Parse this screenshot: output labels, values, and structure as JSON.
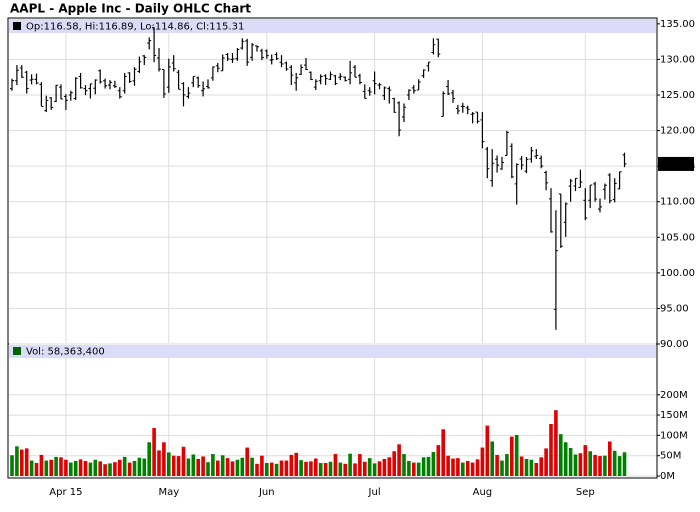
{
  "chart_data": {
    "type": "ohlc",
    "title": "AAPL - Apple Inc - Daily OHLC Chart",
    "ohlc_legend": "Op:116.58, Hi:116.89, Lo:114.86, Cl:115.31",
    "volume_legend": "Vol: 58,363,400",
    "categories": [
      null,
      null,
      null,
      null,
      null,
      null,
      null,
      null,
      null,
      null,
      null,
      "Apr 15",
      null,
      null,
      null,
      null,
      null,
      null,
      null,
      null,
      null,
      null,
      null,
      null,
      null,
      null,
      null,
      null,
      null,
      null,
      null,
      null,
      "May",
      null,
      null,
      null,
      null,
      null,
      null,
      null,
      null,
      null,
      null,
      null,
      null,
      null,
      null,
      null,
      null,
      null,
      null,
      null,
      "Jun",
      null,
      null,
      null,
      null,
      null,
      null,
      null,
      null,
      null,
      null,
      null,
      null,
      null,
      null,
      null,
      null,
      null,
      null,
      null,
      null,
      null,
      "Jul",
      null,
      null,
      null,
      null,
      null,
      null,
      null,
      null,
      null,
      null,
      null,
      null,
      null,
      null,
      null,
      null,
      null,
      null,
      null,
      null,
      null,
      "Aug",
      null,
      null,
      null,
      null,
      null,
      null,
      null,
      null,
      null,
      null,
      null,
      null,
      null,
      null,
      null,
      null,
      null,
      null,
      null,
      null,
      "Sep",
      null,
      null,
      null,
      null,
      null,
      null,
      null,
      null
    ],
    "open": [
      125.9,
      127.0,
      128.8,
      128.2,
      127.1,
      127.2,
      126.5,
      122.8,
      124.6,
      124.1,
      126.1,
      124.8,
      125.0,
      124.5,
      127.6,
      125.9,
      125.9,
      125.95,
      128.4,
      127.0,
      126.4,
      126.3,
      125.6,
      125.6,
      128.1,
      126.99,
      128.3,
      130.5,
      132.3,
      134.5,
      130.2,
      128.6,
      126.1,
      129.5,
      128.2,
      126.6,
      124.8,
      126.7,
      127.4,
      125.6,
      126.2,
      127.4,
      129.1,
      128.4,
      130.7,
      130.0,
      130.1,
      131.6,
      132.6,
      130.3,
      131.9,
      131.2,
      131.2,
      129.9,
      130.7,
      129.6,
      129.5,
      128.9,
      126.7,
      127.9,
      129.2,
      128.2,
      126.1,
      127.0,
      127.7,
      127.2,
      127.7,
      127.5,
      127.5,
      127.2,
      128.9,
      127.7,
      125.5,
      125.6,
      127.0,
      126.4,
      124.9,
      125.9,
      124.5,
      123.9,
      121.9,
      125.0,
      126.0,
      125.7,
      127.7,
      129.1,
      130.97,
      132.85,
      121.99,
      126.2,
      125.3,
      123.1,
      123.4,
      123.2,
      122.3,
      122.6,
      121.5,
      117.4,
      112.95,
      115.97,
      114.6,
      116.5,
      117.8,
      112.5,
      116.0,
      114.3,
      116.0,
      116.4,
      116.1,
      114.1,
      110.4,
      94.87,
      111.1,
      107.1,
      112.2,
      112.2,
      112.0,
      110.2,
      110.2,
      112.5,
      108.97,
      111.75,
      113.76,
      110.3,
      111.8,
      116.58
    ],
    "high": [
      127.3,
      129.2,
      129.2,
      128.4,
      127.9,
      128.0,
      126.8,
      124.9,
      124.7,
      126.4,
      126.5,
      125.1,
      125.6,
      127.5,
      128.1,
      126.4,
      126.6,
      127.2,
      128.6,
      127.3,
      127.1,
      127.0,
      126.1,
      128.1,
      128.2,
      128.9,
      130.4,
      130.6,
      133.1,
      134.5,
      131.6,
      128.6,
      130.1,
      130.6,
      128.5,
      126.8,
      126.1,
      127.6,
      127.6,
      126.9,
      127.2,
      129.0,
      129.5,
      130.7,
      130.9,
      130.9,
      131.6,
      132.97,
      132.9,
      132.3,
      131.95,
      131.5,
      131.4,
      130.7,
      131.0,
      130.6,
      129.7,
      129.2,
      128.1,
      129.3,
      130.2,
      128.3,
      127.2,
      127.9,
      127.9,
      128.3,
      127.8,
      128.06,
      127.6,
      129.8,
      129.2,
      127.99,
      126.5,
      126.1,
      128.3,
      126.7,
      126.2,
      126.2,
      124.6,
      124.1,
      123.8,
      125.8,
      126.4,
      127.2,
      128.6,
      129.6,
      132.97,
      132.92,
      125.5,
      127.1,
      125.7,
      123.6,
      123.9,
      123.5,
      122.6,
      122.6,
      122.6,
      117.7,
      117.4,
      116.5,
      116.3,
      119.99,
      118.2,
      115.4,
      116.4,
      116.3,
      117.7,
      117.4,
      116.5,
      114.35,
      111.9,
      108.8,
      111.1,
      109.9,
      113.2,
      113.3,
      114.5,
      111.9,
      112.3,
      112.8,
      110.45,
      112.56,
      114.0,
      113.3,
      114.21,
      116.89
    ],
    "low": [
      125.6,
      126.4,
      127.4,
      125.2,
      126.5,
      126.5,
      123.4,
      122.6,
      122.9,
      124.0,
      124.4,
      122.9,
      124.2,
      124.3,
      125.9,
      124.97,
      124.5,
      125.1,
      126.6,
      125.9,
      125.8,
      126.0,
      124.5,
      125.2,
      126.7,
      126.3,
      128.1,
      129.2,
      131.4,
      129.6,
      128.3,
      124.6,
      125.3,
      128.3,
      125.8,
      123.4,
      124.5,
      126.1,
      126.0,
      124.8,
      125.9,
      127.0,
      128.2,
      128.4,
      129.8,
      129.5,
      129.8,
      131.4,
      129.1,
      129.8,
      131.1,
      129.9,
      130.1,
      129.3,
      129.9,
      128.9,
      128.4,
      126.4,
      125.6,
      127.8,
      128.5,
      127.1,
      125.7,
      126.5,
      126.4,
      127.1,
      126.4,
      127.08,
      126.9,
      126.5,
      127.5,
      126.5,
      124.5,
      124.9,
      125.1,
      125.8,
      124.3,
      123.8,
      122.5,
      119.2,
      121.2,
      124.3,
      125.2,
      125.7,
      127.4,
      128.3,
      130.7,
      130.3,
      121.99,
      125.0,
      123.9,
      122.3,
      122.5,
      122.3,
      121.0,
      121.0,
      117.5,
      113.3,
      112.1,
      114.1,
      114.5,
      116.5,
      113.3,
      109.6,
      114.5,
      114.0,
      115.5,
      116.0,
      114.7,
      111.6,
      105.65,
      92.0,
      103.5,
      105.05,
      110.0,
      111.5,
      112.0,
      107.4,
      109.1,
      110.0,
      108.5,
      110.3,
      109.77,
      109.9,
      111.76,
      114.86
    ],
    "close": [
      127.04,
      128.47,
      127.5,
      125.9,
      127.21,
      126.69,
      123.38,
      124.24,
      123.25,
      126.37,
      124.43,
      124.25,
      125.32,
      127.35,
      126.01,
      125.6,
      126.56,
      127.1,
      126.85,
      126.3,
      126.78,
      126.17,
      124.75,
      127.6,
      126.91,
      128.62,
      129.67,
      130.28,
      132.65,
      130.56,
      128.64,
      125.15,
      128.95,
      128.7,
      125.8,
      125.01,
      125.26,
      127.62,
      126.32,
      125.87,
      126.01,
      128.95,
      128.77,
      130.19,
      130.07,
      130.06,
      131.39,
      132.54,
      129.62,
      132.045,
      131.78,
      130.28,
      130.535,
      129.96,
      130.12,
      129.36,
      128.65,
      127.8,
      127.42,
      128.88,
      128.59,
      127.17,
      126.92,
      127.6,
      127.3,
      127.88,
      126.6,
      127.61,
      127.03,
      128.11,
      127.5,
      126.75,
      124.53,
      125.425,
      126.6,
      126.44,
      126.0,
      125.69,
      122.57,
      120.07,
      123.28,
      125.66,
      125.61,
      126.82,
      128.51,
      129.62,
      132.07,
      130.75,
      125.22,
      125.16,
      124.5,
      122.77,
      123.38,
      122.99,
      122.37,
      121.3,
      118.44,
      114.64,
      115.4,
      115.13,
      115.52,
      119.72,
      113.49,
      115.24,
      115.15,
      115.96,
      117.16,
      116.5,
      115.01,
      112.65,
      105.76,
      103.12,
      103.74,
      109.69,
      112.92,
      113.29,
      112.76,
      107.72,
      112.34,
      110.37,
      109.27,
      112.31,
      110.15,
      112.57,
      114.21,
      115.31
    ],
    "volume": [
      51000000,
      73000000,
      65000000,
      68000000,
      38000000,
      32000000,
      52000000,
      38000000,
      40000000,
      47000000,
      46000000,
      40000000,
      33000000,
      37000000,
      41000000,
      37000000,
      33000000,
      40000000,
      36000000,
      29000000,
      31000000,
      34000000,
      40000000,
      47000000,
      33000000,
      37000000,
      45000000,
      43000000,
      83000000,
      118000000,
      63000000,
      83000000,
      58000000,
      50000000,
      49000000,
      72000000,
      43000000,
      53000000,
      42000000,
      48000000,
      34000000,
      54000000,
      38000000,
      51000000,
      44000000,
      36000000,
      40000000,
      45000000,
      70000000,
      45000000,
      30000000,
      50000000,
      32000000,
      33000000,
      30000000,
      38000000,
      38000000,
      52000000,
      57000000,
      39000000,
      35000000,
      36000000,
      43000000,
      32000000,
      32000000,
      35000000,
      54000000,
      33000000,
      30000000,
      55000000,
      31000000,
      54000000,
      35000000,
      44000000,
      31000000,
      36000000,
      42000000,
      46000000,
      61000000,
      78000000,
      54000000,
      37000000,
      33000000,
      33000000,
      46000000,
      47000000,
      59000000,
      76000000,
      115000000,
      50000000,
      43000000,
      44000000,
      33000000,
      37000000,
      33000000,
      41000000,
      70000000,
      124000000,
      85000000,
      52000000,
      38000000,
      54000000,
      97000000,
      101000000,
      48000000,
      42000000,
      40000000,
      32000000,
      46000000,
      68000000,
      128000000,
      162000000,
      103000000,
      83000000,
      69000000,
      53000000,
      56000000,
      76000000,
      61000000,
      52000000,
      49000000,
      50000000,
      85000000,
      62000000,
      49000000,
      58363400
    ],
    "bar_color": "#000000",
    "up_color": "#008000",
    "down_color": "#e00000",
    "ylim": [
      90,
      135.4
    ],
    "yticks": [
      {
        "value": 90,
        "label": "90.00"
      },
      {
        "value": 95,
        "label": "95.00"
      },
      {
        "value": 100,
        "label": "100.00"
      },
      {
        "value": 105,
        "label": "105.00"
      },
      {
        "value": 110,
        "label": "110.00"
      },
      {
        "value": 115,
        "label": "115.00"
      },
      {
        "value": 120,
        "label": "120.00"
      },
      {
        "value": 125,
        "label": "125.00"
      },
      {
        "value": 130,
        "label": "130.00"
      },
      {
        "value": 135,
        "label": "135.00"
      }
    ],
    "y2lim": [
      0,
      320000000
    ],
    "y2ticks": [
      {
        "value": 0,
        "label": "0M"
      },
      {
        "value": 50000000,
        "label": "50M"
      },
      {
        "value": 100000000,
        "label": "100M"
      },
      {
        "value": 150000000,
        "label": "150M"
      },
      {
        "value": 200000000,
        "label": "200M"
      }
    ],
    "grid": true
  }
}
